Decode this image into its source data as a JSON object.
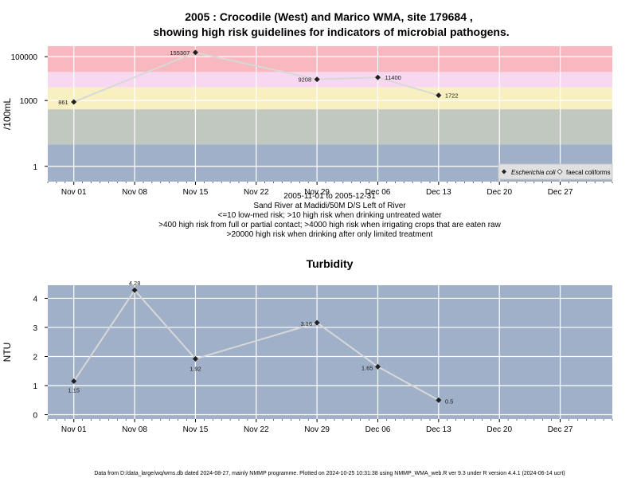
{
  "top": {
    "title_line1": "2005 : Crocodile (West) and Marico WMA, site 179684 ,",
    "title_line2": "showing high risk guidelines for indicators of microbial pathogens.",
    "ylabel": "/100mL",
    "caption": [
      "2005-11-01 to 2005-12-31",
      "Sand River at Madidi/50M D/S Left of River",
      "<=10 low-med risk; >10 high risk when drinking untreated water",
      ">400 high risk from full or partial contact; >4000 high risk when irrigating crops that are eaten raw",
      ">20000 high risk when drinking after only limited treatment"
    ],
    "legend": [
      "Escherichia coli",
      "faecal coliforms"
    ]
  },
  "bottom": {
    "title": "Turbidity",
    "ylabel": "NTU"
  },
  "footer": "Data from D:/data_large/wq/wms.db dated 2024-08-27, mainly NMMP programme. Plotted on 2024-10-25 10:31:38 using NMMP_WMA_web.R ver 9.3 under R version 4.4.1 (2024-06-14 ucrt)",
  "colors": {
    "band_low": "#a0b0c8",
    "band_10_400": "#c0c8c0",
    "band_400_4000": "#f8f0c0",
    "band_4000_20000": "#f8d8f0",
    "band_high": "#f8b8c0",
    "panel_bg": "#a0b0c8",
    "line": "#d8d8d8",
    "point": "#202020"
  },
  "chart_data": [
    {
      "type": "line",
      "title": "2005 : Crocodile (West) and Marico WMA, site 179684 , showing high risk guidelines for indicators of microbial pathogens.",
      "ylabel": "/100mL",
      "yscale": "log",
      "ylim": [
        0.2,
        300000
      ],
      "yticks": [
        1,
        1000,
        100000
      ],
      "ytick_labels": [
        "1",
        "1000",
        "100000"
      ],
      "x_range": [
        "2005-10-29",
        "2006-01-02"
      ],
      "xticks": [
        "2005-11-01",
        "2005-11-08",
        "2005-11-15",
        "2005-11-22",
        "2005-11-29",
        "2005-12-06",
        "2005-12-13",
        "2005-12-20",
        "2005-12-27"
      ],
      "xtick_labels": [
        "Nov 01",
        "Nov 08",
        "Nov 15",
        "Nov 22",
        "Nov 29",
        "Dec 06",
        "Dec 13",
        "Dec 20",
        "Dec 27"
      ],
      "risk_bands": [
        {
          "from": 0.2,
          "to": 10,
          "color": "#a0b0c8"
        },
        {
          "from": 10,
          "to": 400,
          "color": "#c0c8c0"
        },
        {
          "from": 400,
          "to": 4000,
          "color": "#f8f0c0"
        },
        {
          "from": 4000,
          "to": 20000,
          "color": "#f8d8f0"
        },
        {
          "from": 20000,
          "to": 300000,
          "color": "#f8b8c0"
        }
      ],
      "legend_position": "bottom-right",
      "series": [
        {
          "name": "Escherichia coli",
          "x": [
            "2005-11-01",
            "2005-11-15",
            "2005-11-29",
            "2005-12-06",
            "2005-12-13"
          ],
          "y": [
            861,
            155307,
            9208,
            11400,
            1722
          ],
          "labels": [
            "861",
            "155307",
            "9208",
            "11400",
            "1722"
          ]
        }
      ]
    },
    {
      "type": "line",
      "title": "Turbidity",
      "ylabel": "NTU",
      "ylim": [
        -0.15,
        4.45
      ],
      "yticks": [
        0,
        1,
        2,
        3,
        4
      ],
      "ytick_labels": [
        "0",
        "1",
        "2",
        "3",
        "4"
      ],
      "x_range": [
        "2005-10-29",
        "2006-01-02"
      ],
      "xticks": [
        "2005-11-01",
        "2005-11-08",
        "2005-11-15",
        "2005-11-22",
        "2005-11-29",
        "2005-12-06",
        "2005-12-13",
        "2005-12-20",
        "2005-12-27"
      ],
      "xtick_labels": [
        "Nov 01",
        "Nov 08",
        "Nov 15",
        "Nov 22",
        "Nov 29",
        "Dec 06",
        "Dec 13",
        "Dec 20",
        "Dec 27"
      ],
      "series": [
        {
          "x": [
            "2005-11-01",
            "2005-11-08",
            "2005-11-15",
            "2005-11-29",
            "2005-12-06",
            "2005-12-13"
          ],
          "y": [
            1.15,
            4.28,
            1.92,
            3.16,
            1.65,
            0.5
          ],
          "labels": [
            "1.15",
            "4.28",
            "1.92",
            "3.16",
            "1.65",
            "0.5"
          ]
        }
      ]
    }
  ]
}
